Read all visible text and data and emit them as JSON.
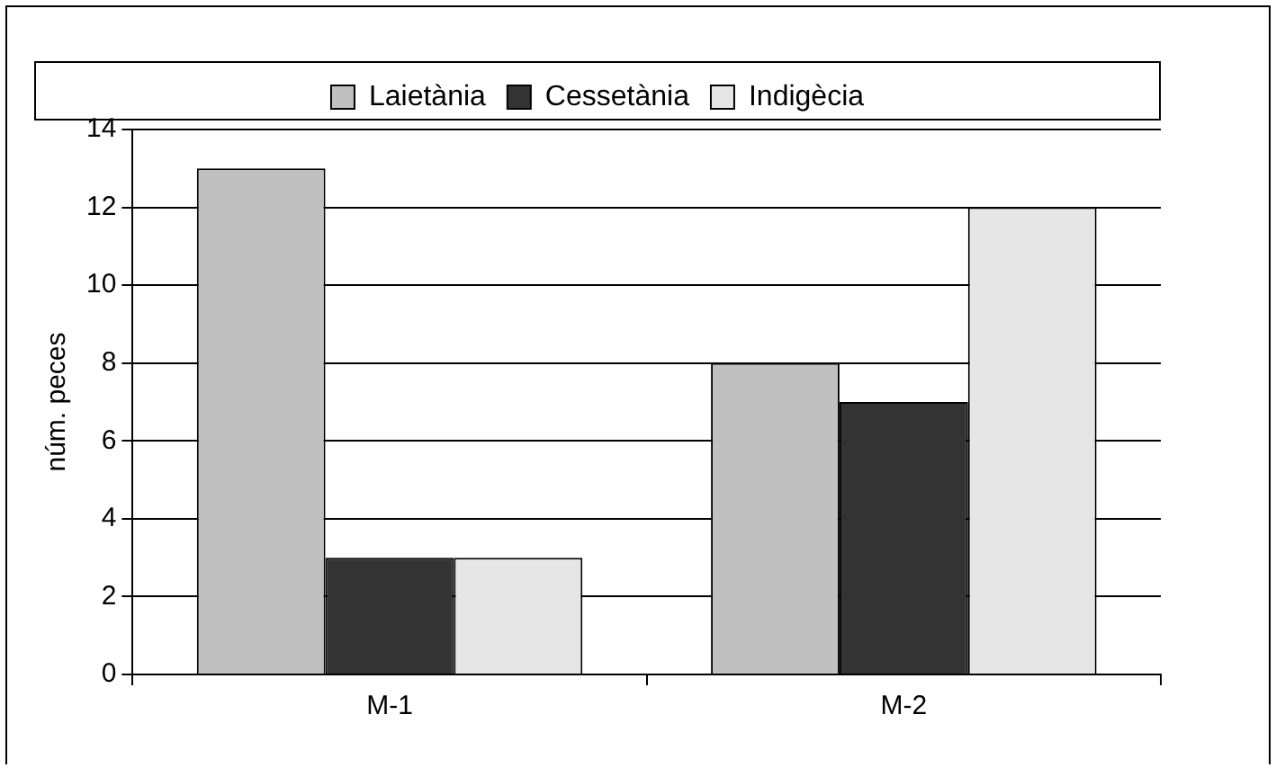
{
  "chart_data": {
    "type": "bar",
    "ylabel": "núm. peces",
    "categories": [
      "M-1",
      "M-2"
    ],
    "series": [
      {
        "name": "Laietània",
        "color": "#c0c0c0",
        "values": [
          13,
          8
        ]
      },
      {
        "name": "Cessetània",
        "color": "#333333",
        "values": [
          3,
          7
        ]
      },
      {
        "name": "Indigècia",
        "color": "#e6e6e6",
        "values": [
          3,
          12
        ]
      }
    ],
    "ylim": [
      0,
      14
    ],
    "yticks": [
      0,
      2,
      4,
      6,
      8,
      10,
      12,
      14
    ],
    "grid": "y",
    "legend": "top"
  }
}
